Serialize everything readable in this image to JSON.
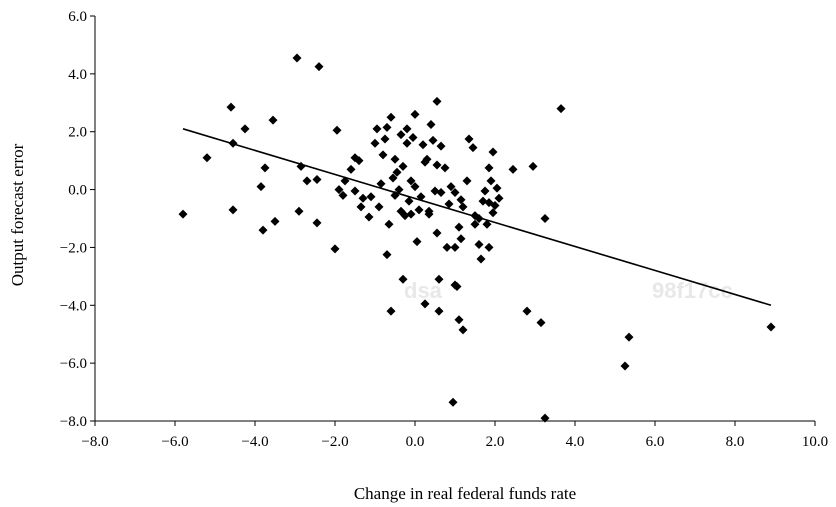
{
  "chart_data": {
    "type": "scatter",
    "xlabel": "Change in real federal funds rate",
    "ylabel": "Output forecast error",
    "xlim": [
      -8.0,
      10.0
    ],
    "ylim": [
      -8.0,
      6.0
    ],
    "xticks": [
      "−8.0",
      "−6.0",
      "−4.0",
      "−2.0",
      "0.0",
      "2.0",
      "4.0",
      "6.0",
      "8.0",
      "10.0"
    ],
    "yticks": [
      "6.0",
      "4.0",
      "2.0",
      "0.0",
      "−2.0",
      "−4.0",
      "−6.0",
      "−8.0"
    ],
    "grid": false,
    "marker": "diamond",
    "marker_color": "#000000",
    "trendline": {
      "from": [
        -5.8,
        2.1
      ],
      "to": [
        8.9,
        -4.0
      ]
    },
    "points": [
      [
        -5.8,
        -0.85
      ],
      [
        -5.2,
        1.1
      ],
      [
        -4.6,
        2.85
      ],
      [
        -4.55,
        1.6
      ],
      [
        -4.55,
        -0.7
      ],
      [
        -4.25,
        2.1
      ],
      [
        -3.85,
        0.1
      ],
      [
        -3.8,
        -1.4
      ],
      [
        -3.75,
        0.75
      ],
      [
        -3.55,
        2.4
      ],
      [
        -3.5,
        -1.1
      ],
      [
        -2.95,
        4.55
      ],
      [
        -2.9,
        -0.75
      ],
      [
        -2.85,
        0.8
      ],
      [
        -2.7,
        0.3
      ],
      [
        -2.45,
        0.35
      ],
      [
        -2.45,
        -1.15
      ],
      [
        -2.4,
        4.25
      ],
      [
        -2.0,
        -2.05
      ],
      [
        -1.95,
        2.05
      ],
      [
        -1.9,
        0.0
      ],
      [
        -1.8,
        -0.2
      ],
      [
        -1.75,
        0.3
      ],
      [
        -1.6,
        0.7
      ],
      [
        -1.5,
        1.1
      ],
      [
        -1.5,
        -0.05
      ],
      [
        -1.4,
        1.0
      ],
      [
        -1.35,
        -0.6
      ],
      [
        -1.3,
        -0.3
      ],
      [
        -1.15,
        -0.95
      ],
      [
        -1.1,
        -0.25
      ],
      [
        -1.0,
        1.6
      ],
      [
        -0.95,
        2.1
      ],
      [
        -0.9,
        -0.6
      ],
      [
        -0.85,
        0.2
      ],
      [
        -0.8,
        1.2
      ],
      [
        -0.75,
        1.75
      ],
      [
        -0.7,
        2.15
      ],
      [
        -0.7,
        -2.25
      ],
      [
        -0.65,
        -1.2
      ],
      [
        -0.6,
        -4.2
      ],
      [
        -0.6,
        2.5
      ],
      [
        -0.55,
        0.4
      ],
      [
        -0.5,
        1.05
      ],
      [
        -0.5,
        -0.2
      ],
      [
        -0.45,
        0.6
      ],
      [
        -0.4,
        0.0
      ],
      [
        -0.35,
        1.9
      ],
      [
        -0.35,
        -0.75
      ],
      [
        -0.3,
        -3.1
      ],
      [
        -0.3,
        0.8
      ],
      [
        -0.25,
        -0.9
      ],
      [
        -0.2,
        1.6
      ],
      [
        -0.2,
        2.1
      ],
      [
        -0.15,
        -0.4
      ],
      [
        -0.1,
        0.3
      ],
      [
        -0.1,
        -0.85
      ],
      [
        -0.05,
        1.8
      ],
      [
        0.0,
        0.1
      ],
      [
        0.0,
        2.6
      ],
      [
        0.05,
        -1.8
      ],
      [
        0.1,
        -0.7
      ],
      [
        0.15,
        -0.25
      ],
      [
        0.2,
        1.55
      ],
      [
        0.25,
        0.95
      ],
      [
        0.25,
        -3.95
      ],
      [
        0.3,
        1.05
      ],
      [
        0.35,
        -0.85
      ],
      [
        0.35,
        -0.75
      ],
      [
        0.4,
        2.25
      ],
      [
        0.45,
        1.7
      ],
      [
        0.5,
        -0.05
      ],
      [
        0.55,
        3.05
      ],
      [
        0.55,
        -1.5
      ],
      [
        0.55,
        0.85
      ],
      [
        0.6,
        -3.1
      ],
      [
        0.6,
        -4.2
      ],
      [
        0.65,
        -0.1
      ],
      [
        0.65,
        1.5
      ],
      [
        0.75,
        0.75
      ],
      [
        0.8,
        -2.0
      ],
      [
        0.85,
        -0.5
      ],
      [
        0.9,
        0.1
      ],
      [
        0.95,
        -7.35
      ],
      [
        1.0,
        -2.0
      ],
      [
        1.0,
        -3.3
      ],
      [
        1.0,
        -0.1
      ],
      [
        1.05,
        -3.35
      ],
      [
        1.1,
        -4.5
      ],
      [
        1.1,
        -1.3
      ],
      [
        1.15,
        -0.35
      ],
      [
        1.15,
        -1.7
      ],
      [
        1.2,
        -4.85
      ],
      [
        1.2,
        -0.6
      ],
      [
        1.3,
        0.3
      ],
      [
        1.35,
        1.75
      ],
      [
        1.45,
        1.45
      ],
      [
        1.5,
        -0.9
      ],
      [
        1.5,
        -1.2
      ],
      [
        1.6,
        -1.0
      ],
      [
        1.6,
        -1.9
      ],
      [
        1.65,
        -2.4
      ],
      [
        1.7,
        -0.4
      ],
      [
        1.75,
        -0.05
      ],
      [
        1.8,
        -1.2
      ],
      [
        1.85,
        0.75
      ],
      [
        1.85,
        -2.0
      ],
      [
        1.85,
        -0.45
      ],
      [
        1.9,
        0.3
      ],
      [
        1.95,
        1.3
      ],
      [
        1.95,
        -0.8
      ],
      [
        2.0,
        -0.55
      ],
      [
        2.05,
        0.05
      ],
      [
        2.1,
        -0.3
      ],
      [
        2.45,
        0.7
      ],
      [
        2.8,
        -4.2
      ],
      [
        2.95,
        0.8
      ],
      [
        3.15,
        -4.6
      ],
      [
        3.25,
        -7.9
      ],
      [
        3.25,
        -1.0
      ],
      [
        3.65,
        2.8
      ],
      [
        5.25,
        -6.1
      ],
      [
        5.35,
        -5.1
      ],
      [
        8.9,
        -4.75
      ]
    ]
  }
}
